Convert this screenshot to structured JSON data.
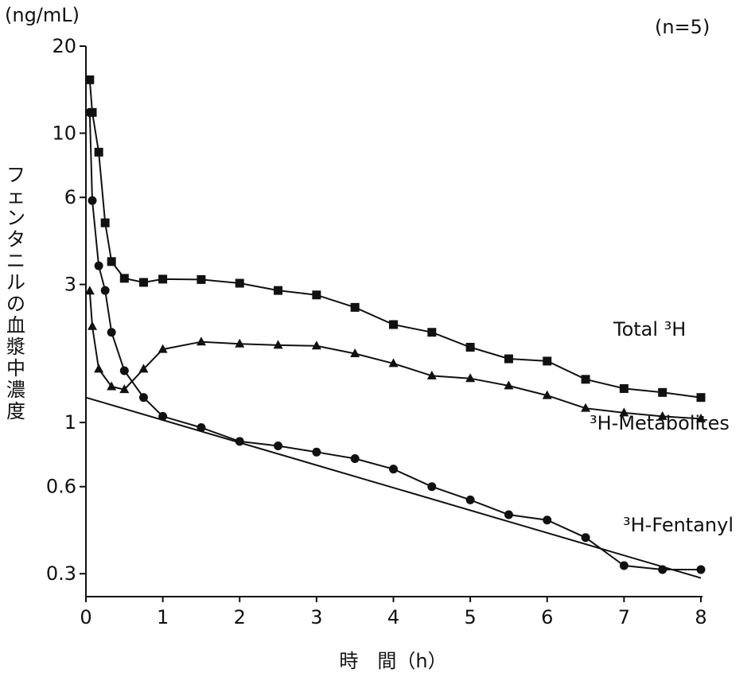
{
  "chart_data": {
    "type": "line",
    "unit_label": "(ng/mL)",
    "note": "(n=5)",
    "xlabel": "時　間（h）",
    "ylabel": "フェンタニルの血漿中濃度",
    "xlim": [
      0,
      8
    ],
    "ylim": [
      0.25,
      20
    ],
    "yscale": "log",
    "xticks": [
      0,
      1,
      2,
      3,
      4,
      5,
      6,
      7,
      8
    ],
    "xtick_labels": [
      "0",
      "1",
      "2",
      "3",
      "4",
      "5",
      "6",
      "7",
      "8"
    ],
    "yticks": [
      0.3,
      0.6,
      1,
      3,
      6,
      10,
      20
    ],
    "ytick_labels": [
      "0.3",
      "0.6",
      "1",
      "3",
      "6",
      "10",
      "20"
    ],
    "grid": false,
    "series": [
      {
        "label": "Total ³H",
        "marker": "square",
        "x": [
          0.05,
          0.083,
          0.167,
          0.25,
          0.333,
          0.5,
          0.75,
          1,
          1.5,
          2,
          2.5,
          3,
          3.5,
          4,
          4.5,
          5,
          5.5,
          6,
          6.5,
          7,
          7.5,
          8
        ],
        "y": [
          15.3,
          11.8,
          8.6,
          4.9,
          3.6,
          3.15,
          3.05,
          3.13,
          3.12,
          3.03,
          2.86,
          2.76,
          2.5,
          2.18,
          2.05,
          1.82,
          1.66,
          1.63,
          1.41,
          1.31,
          1.27,
          1.22
        ]
      },
      {
        "label": "³H-Metabolites",
        "marker": "triangle",
        "x": [
          0.05,
          0.083,
          0.167,
          0.333,
          0.5,
          0.75,
          1,
          1.5,
          2,
          2.5,
          3,
          3.5,
          4,
          4.5,
          5,
          5.5,
          6,
          6.5,
          7,
          7.5,
          8
        ],
        "y": [
          2.85,
          2.15,
          1.53,
          1.33,
          1.3,
          1.53,
          1.79,
          1.9,
          1.87,
          1.85,
          1.84,
          1.73,
          1.6,
          1.45,
          1.42,
          1.34,
          1.24,
          1.12,
          1.08,
          1.05,
          1.03
        ]
      },
      {
        "label": "³H-Fentanyl",
        "marker": "circle",
        "x": [
          0.05,
          0.083,
          0.167,
          0.25,
          0.333,
          0.5,
          0.75,
          1,
          1.5,
          2,
          2.5,
          3,
          3.5,
          4,
          4.5,
          5,
          5.5,
          6,
          6.5,
          7,
          7.5,
          8
        ],
        "y": [
          11.8,
          5.85,
          3.48,
          2.86,
          2.05,
          1.51,
          1.22,
          1.05,
          0.96,
          0.86,
          0.83,
          0.79,
          0.75,
          0.69,
          0.6,
          0.54,
          0.48,
          0.46,
          0.4,
          0.32,
          0.31,
          0.31
        ]
      }
    ],
    "regression_line": {
      "x": [
        0,
        8
      ],
      "y": [
        1.22,
        0.29
      ]
    }
  }
}
